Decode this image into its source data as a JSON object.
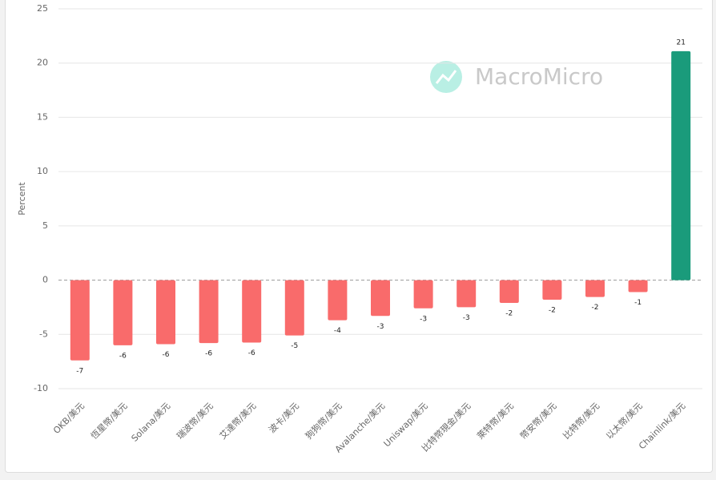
{
  "chart_data": {
    "type": "bar",
    "y_label": "Percent",
    "watermark": "MacroMicro",
    "categories": [
      "OKB/美元",
      "恆星幣/美元",
      "Solana/美元",
      "瑞波幣/美元",
      "艾達幣/美元",
      "波卡/美元",
      "狗狗幣/美元",
      "Avalanche/美元",
      "Uniswap/美元",
      "比特幣現金/美元",
      "萊特幣/美元",
      "幣安幣/美元",
      "比特幣/美元",
      "以太幣/美元",
      "Chainlink/美元"
    ],
    "values": [
      -7.4,
      -6.0,
      -5.9,
      -5.8,
      -5.75,
      -5.1,
      -3.7,
      -3.3,
      -2.6,
      -2.5,
      -2.1,
      -1.8,
      -1.55,
      -1.1,
      21.1
    ],
    "value_labels": [
      "-7",
      "-6",
      "-6",
      "-6",
      "-6",
      "-5",
      "-4",
      "-3",
      "-3",
      "-3",
      "-2",
      "-2",
      "-2",
      "-1",
      "21"
    ],
    "negative_color": "#f96b6b",
    "positive_color": "#1a9b7b",
    "ylim": [
      -10,
      25
    ],
    "yticks": [
      -10,
      -5,
      0,
      5,
      10,
      15,
      20,
      25
    ],
    "grid": true
  }
}
